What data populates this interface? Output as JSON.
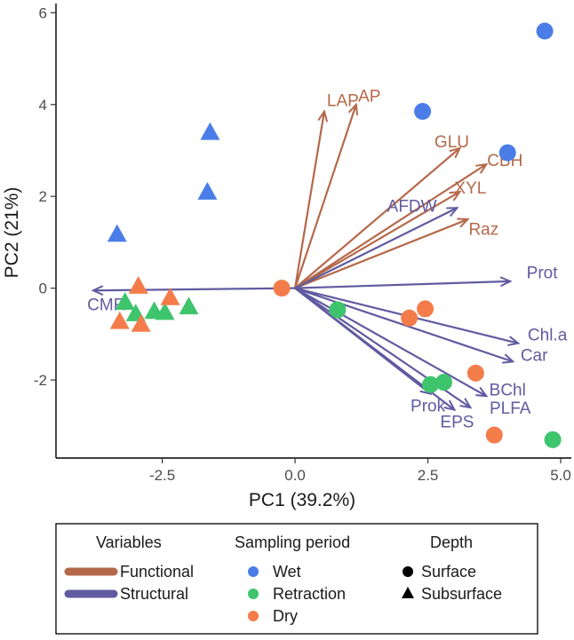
{
  "chart_data": {
    "type": "scatter",
    "subtype": "pca-biplot",
    "xlabel": "PC1 (39.2%)",
    "ylabel": "PC2 (21%)",
    "xlim": [
      -4.5,
      5.2
    ],
    "ylim": [
      -3.7,
      6.2
    ],
    "xticks": [
      -2.5,
      0,
      2.5,
      5
    ],
    "xtick_labels": [
      "-2.5",
      "0.0",
      "2.5",
      "5.0"
    ],
    "yticks": [
      -2,
      0,
      2,
      4,
      6
    ],
    "ytick_labels": [
      "-2",
      "0",
      "2",
      "4",
      "6"
    ],
    "colors": {
      "Wet": "#4a7de8",
      "Retraction": "#3ec46d",
      "Dry": "#f37c4a",
      "Functional": "#b5684a",
      "Structural": "#605ba0"
    },
    "points": [
      {
        "x": 4.7,
        "y": 5.6,
        "period": "Wet",
        "depth": "Surface"
      },
      {
        "x": 2.4,
        "y": 3.85,
        "period": "Wet",
        "depth": "Surface"
      },
      {
        "x": 4.0,
        "y": 2.95,
        "period": "Wet",
        "depth": "Surface"
      },
      {
        "x": -1.6,
        "y": 3.4,
        "period": "Wet",
        "depth": "Subsurface"
      },
      {
        "x": -1.65,
        "y": 2.1,
        "period": "Wet",
        "depth": "Subsurface"
      },
      {
        "x": -3.35,
        "y": 1.18,
        "period": "Wet",
        "depth": "Subsurface"
      },
      {
        "x": 0.8,
        "y": -0.47,
        "period": "Retraction",
        "depth": "Surface"
      },
      {
        "x": 2.55,
        "y": -2.1,
        "period": "Retraction",
        "depth": "Surface"
      },
      {
        "x": 2.8,
        "y": -2.05,
        "period": "Retraction",
        "depth": "Surface"
      },
      {
        "x": 4.85,
        "y": -3.3,
        "period": "Retraction",
        "depth": "Surface"
      },
      {
        "x": -3.2,
        "y": -0.3,
        "period": "Retraction",
        "depth": "Subsurface"
      },
      {
        "x": -3.0,
        "y": -0.55,
        "period": "Retraction",
        "depth": "Subsurface"
      },
      {
        "x": -2.65,
        "y": -0.5,
        "period": "Retraction",
        "depth": "Subsurface"
      },
      {
        "x": -2.45,
        "y": -0.52,
        "period": "Retraction",
        "depth": "Subsurface"
      },
      {
        "x": -2.0,
        "y": -0.4,
        "period": "Retraction",
        "depth": "Subsurface"
      },
      {
        "x": -0.25,
        "y": 0.0,
        "period": "Dry",
        "depth": "Surface"
      },
      {
        "x": 2.15,
        "y": -0.65,
        "period": "Dry",
        "depth": "Surface"
      },
      {
        "x": 2.45,
        "y": -0.45,
        "period": "Dry",
        "depth": "Surface"
      },
      {
        "x": 3.4,
        "y": -1.85,
        "period": "Dry",
        "depth": "Surface"
      },
      {
        "x": 3.75,
        "y": -3.2,
        "period": "Dry",
        "depth": "Surface"
      },
      {
        "x": -2.95,
        "y": 0.05,
        "period": "Dry",
        "depth": "Subsurface"
      },
      {
        "x": -2.35,
        "y": -0.2,
        "period": "Dry",
        "depth": "Subsurface"
      },
      {
        "x": -3.3,
        "y": -0.72,
        "period": "Dry",
        "depth": "Subsurface"
      },
      {
        "x": -2.9,
        "y": -0.78,
        "period": "Dry",
        "depth": "Subsurface"
      }
    ],
    "vectors": [
      {
        "name": "LAP",
        "x": 0.55,
        "y": 3.85,
        "group": "Functional",
        "label_x": 0.9,
        "label_y": 4.1
      },
      {
        "name": "AP",
        "x": 1.15,
        "y": 4.0,
        "group": "Functional",
        "label_x": 1.4,
        "label_y": 4.2
      },
      {
        "name": "GLU",
        "x": 3.1,
        "y": 3.05,
        "group": "Functional",
        "label_x": 2.95,
        "label_y": 3.2
      },
      {
        "name": "CBH",
        "x": 3.6,
        "y": 2.7,
        "group": "Functional",
        "label_x": 3.95,
        "label_y": 2.8
      },
      {
        "name": "XYL",
        "x": 3.1,
        "y": 2.1,
        "group": "Functional",
        "label_x": 3.3,
        "label_y": 2.2
      },
      {
        "name": "Raz",
        "x": 3.25,
        "y": 1.5,
        "group": "Functional",
        "label_x": 3.55,
        "label_y": 1.3
      },
      {
        "name": "AFDW",
        "x": 3.05,
        "y": 1.75,
        "group": "Structural",
        "label_x": 2.2,
        "label_y": 1.8
      },
      {
        "name": "Prot",
        "x": 4.05,
        "y": 0.15,
        "group": "Structural",
        "label_x": 4.65,
        "label_y": 0.35
      },
      {
        "name": "Chl.a",
        "x": 4.2,
        "y": -1.2,
        "group": "Structural",
        "label_x": 4.75,
        "label_y": -1.0
      },
      {
        "name": "Car",
        "x": 4.1,
        "y": -1.6,
        "group": "Structural",
        "label_x": 4.5,
        "label_y": -1.45
      },
      {
        "name": "BChl",
        "x": 3.6,
        "y": -2.35,
        "group": "Structural",
        "label_x": 4.0,
        "label_y": -2.2
      },
      {
        "name": "PLFA",
        "x": 3.3,
        "y": -2.6,
        "group": "Structural",
        "label_x": 4.05,
        "label_y": -2.6
      },
      {
        "name": "EPS",
        "x": 3.0,
        "y": -2.65,
        "group": "Structural",
        "label_x": 3.05,
        "label_y": -2.9
      },
      {
        "name": "Prok",
        "x": 2.55,
        "y": -2.3,
        "group": "Structural",
        "label_x": 2.5,
        "label_y": -2.55
      },
      {
        "name": "CMR",
        "x": -3.8,
        "y": -0.05,
        "group": "Structural",
        "label_x": -3.55,
        "label_y": -0.35
      }
    ]
  },
  "legend": {
    "variables_title": "Variables",
    "variables": [
      {
        "label": "Functional",
        "color": "#b5684a"
      },
      {
        "label": "Structural",
        "color": "#605ba0"
      }
    ],
    "period_title": "Sampling period",
    "periods": [
      {
        "label": "Wet",
        "color": "#4a7de8"
      },
      {
        "label": "Retraction",
        "color": "#3ec46d"
      },
      {
        "label": "Dry",
        "color": "#f37c4a"
      }
    ],
    "depth_title": "Depth",
    "depths": [
      {
        "label": "Surface",
        "shape": "circle"
      },
      {
        "label": "Subsurface",
        "shape": "triangle"
      }
    ]
  }
}
